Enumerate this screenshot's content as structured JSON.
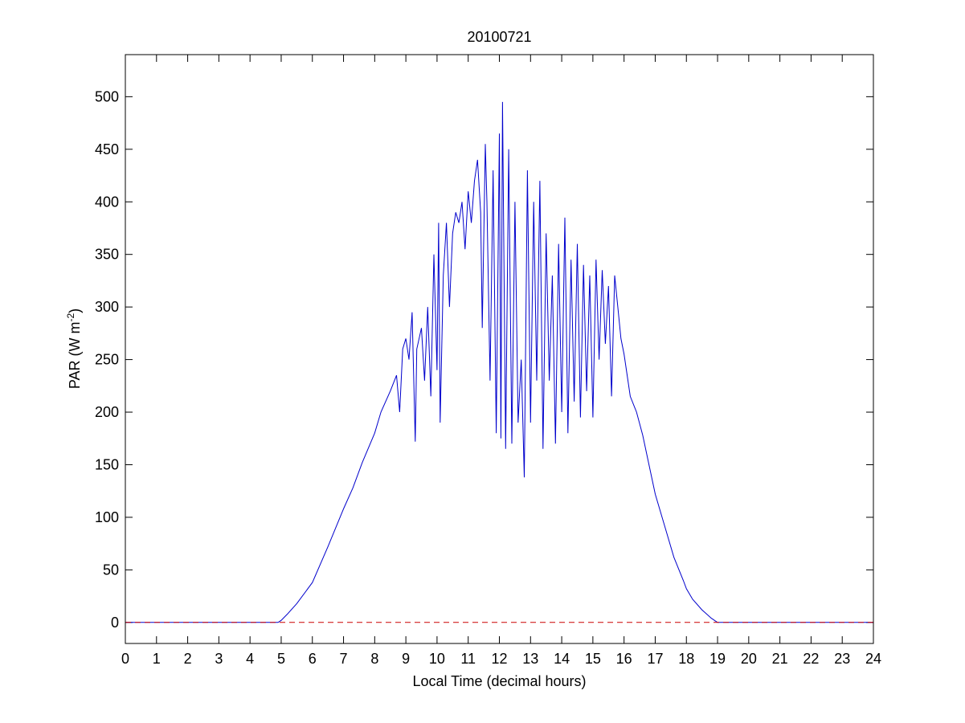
{
  "chart_data": {
    "type": "line",
    "title": "20100721",
    "xlabel": "Local Time (decimal hours)",
    "ylabel": {
      "prefix": "PAR (W m",
      "superscript": "-2",
      "suffix": ")"
    },
    "xlim": [
      0,
      24
    ],
    "ylim": [
      -20,
      540
    ],
    "xticks": [
      "0",
      "1",
      "2",
      "3",
      "4",
      "5",
      "6",
      "7",
      "8",
      "9",
      "10",
      "11",
      "12",
      "13",
      "14",
      "15",
      "16",
      "17",
      "18",
      "19",
      "20",
      "21",
      "22",
      "23",
      "24"
    ],
    "yticks": [
      "0",
      "50",
      "100",
      "150",
      "200",
      "250",
      "300",
      "350",
      "400",
      "450",
      "500"
    ],
    "grid": false,
    "legend": "none",
    "colors": {
      "par_series": "#0000cc",
      "zero_line": "#cc0000"
    },
    "series": [
      {
        "line_style": "solid",
        "x": [
          0,
          4.9,
          5.0,
          5.2,
          5.5,
          6.0,
          6.5,
          7.0,
          7.3,
          7.6,
          8.0,
          8.2,
          8.5,
          8.7,
          8.8,
          8.9,
          9.0,
          9.1,
          9.2,
          9.3,
          9.35,
          9.5,
          9.6,
          9.7,
          9.8,
          9.9,
          10.0,
          10.05,
          10.1,
          10.2,
          10.3,
          10.4,
          10.5,
          10.6,
          10.7,
          10.8,
          10.9,
          11.0,
          11.1,
          11.2,
          11.3,
          11.4,
          11.45,
          11.55,
          11.6,
          11.7,
          11.8,
          11.9,
          12.0,
          12.05,
          12.1,
          12.2,
          12.3,
          12.4,
          12.5,
          12.6,
          12.7,
          12.8,
          12.9,
          13.0,
          13.1,
          13.2,
          13.3,
          13.4,
          13.5,
          13.6,
          13.7,
          13.8,
          13.9,
          14.0,
          14.1,
          14.2,
          14.3,
          14.4,
          14.5,
          14.6,
          14.7,
          14.8,
          14.9,
          15.0,
          15.1,
          15.2,
          15.3,
          15.4,
          15.5,
          15.6,
          15.7,
          15.8,
          15.9,
          16.0,
          16.2,
          16.4,
          16.6,
          16.8,
          17.0,
          17.3,
          17.6,
          17.9,
          18.0,
          18.2,
          18.5,
          18.8,
          19.0,
          19.3,
          19.6,
          19.8,
          20.0,
          24.0
        ],
        "y": [
          0,
          0,
          2,
          8,
          18,
          38,
          72,
          108,
          128,
          152,
          180,
          200,
          220,
          235,
          200,
          260,
          270,
          250,
          295,
          172,
          260,
          280,
          230,
          300,
          215,
          350,
          240,
          380,
          190,
          330,
          380,
          300,
          370,
          390,
          380,
          400,
          355,
          410,
          380,
          420,
          440,
          390,
          280,
          455,
          400,
          230,
          430,
          180,
          465,
          175,
          495,
          165,
          450,
          170,
          400,
          190,
          250,
          138,
          430,
          190,
          400,
          230,
          420,
          165,
          370,
          230,
          330,
          170,
          360,
          200,
          385,
          180,
          345,
          210,
          360,
          195,
          340,
          220,
          330,
          195,
          345,
          250,
          335,
          265,
          320,
          215,
          330,
          300,
          270,
          255,
          215,
          200,
          178,
          150,
          122,
          92,
          62,
          40,
          32,
          22,
          12,
          4,
          0,
          0,
          0,
          0,
          0,
          0
        ]
      },
      {
        "line_style": "dashed",
        "x": [
          0,
          24
        ],
        "y": [
          0,
          0
        ]
      }
    ]
  }
}
